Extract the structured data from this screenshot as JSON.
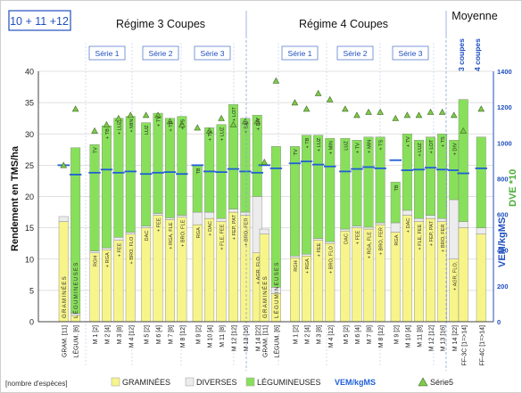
{
  "chart_data": {
    "type": "bar",
    "stacked": true,
    "badge": "10 + 11 +12",
    "group_titles": [
      "Régime 3 Coupes",
      "Régime  4 Coupes",
      "Moyenne"
    ],
    "serie_labels": [
      "Série 1",
      "Série 2",
      "Série 3"
    ],
    "moyenne_labels": [
      "3 coupes",
      "4 coupes"
    ],
    "ylabel": "Rendement    en    TMS/ha",
    "y2label_parts": [
      "VEM/kgMS",
      "DVE *10"
    ],
    "ylim": [
      0,
      40
    ],
    "yticks": [
      0,
      5,
      10,
      15,
      20,
      25,
      30,
      35,
      40
    ],
    "y2lim": [
      0,
      1400
    ],
    "y2ticks": [
      0,
      200,
      400,
      600,
      800,
      1000,
      1200,
      1400
    ],
    "footnote": "[nombre d'espèces]",
    "legend": [
      {
        "key": "gram",
        "label": "GRAMINÉES",
        "color": "#f7f58a"
      },
      {
        "key": "div",
        "label": "DIVERSES",
        "color": "#ececec"
      },
      {
        "key": "leg",
        "label": "LÉGUMINEUSES",
        "color": "#88e05a"
      },
      {
        "key": "vem",
        "label": "VEM/kgMS",
        "color": "#1f5fd6"
      },
      {
        "key": "s5",
        "label": "Série5",
        "color": "#7fc94a"
      }
    ],
    "colors": {
      "gram": "#f7f58a",
      "div": "#ececec",
      "leg": "#88e05a",
      "vem": "#1f5fd6",
      "s5": "#7fc94a",
      "title": "#1f4fbf"
    },
    "bars": [
      {
        "cat": "GRAM. [11]",
        "gram": 16.0,
        "div": 0.8,
        "leg": 0,
        "vem": 25.0,
        "tri": 25.0,
        "note": "",
        "bottom": "GRAMINÉES",
        "inner": ""
      },
      {
        "cat": "LÉGUM. [6]",
        "gram": 1.0,
        "div": 0.3,
        "leg": 26.5,
        "vem": 23.5,
        "tri": 34.0,
        "note": "",
        "bottom": "LÉGUMINEUSES",
        "inner": ""
      },
      {
        "cat": "M 1 [2]",
        "gram": 11.0,
        "div": 0.3,
        "leg": 17.0,
        "vem": 23.8,
        "tri": 30.5,
        "note": "RGH",
        "bottom": "",
        "inner": "TV"
      },
      {
        "cat": "M 2 [4]",
        "gram": 11.5,
        "div": 0.3,
        "leg": 19.5,
        "vem": 24.3,
        "tri": 31.5,
        "note": "+ RGA",
        "bottom": "",
        "inner": "+ TB"
      },
      {
        "cat": "M 3 [8]",
        "gram": 13.0,
        "div": 0.5,
        "leg": 19.0,
        "vem": 23.8,
        "tri": 32.5,
        "note": "+ FEE",
        "bottom": "",
        "inner": "+ LUZ"
      },
      {
        "cat": "M 4 [12]",
        "gram": 14.0,
        "div": 0.3,
        "leg": 18.5,
        "vem": 24.0,
        "tri": 33.0,
        "note": "+ BRO. FLO",
        "bottom": "",
        "inner": "+ MIN"
      },
      {
        "cat": "M 5 [2]",
        "gram": 15.0,
        "div": 0.3,
        "leg": 16.5,
        "vem": 23.6,
        "tri": 33.0,
        "note": "DAC",
        "bottom": "",
        "inner": "LUZ"
      },
      {
        "cat": "M 6 [4]",
        "gram": 17.0,
        "div": 0.3,
        "leg": 16.0,
        "vem": 23.8,
        "tri": 33.0,
        "note": "+ FEE",
        "bottom": "",
        "inner": "+ TV"
      },
      {
        "cat": "M 7 [8]",
        "gram": 16.3,
        "div": 0.3,
        "leg": 15.9,
        "vem": 23.9,
        "tri": 32.0,
        "note": "+ RGA, FLE",
        "bottom": "",
        "inner": "+ TB"
      },
      {
        "cat": "M 8 [12]",
        "gram": 16.7,
        "div": 0.3,
        "leg": 15.8,
        "vem": 23.6,
        "tri": 31.5,
        "note": "+ BRO. FLE",
        "bottom": "",
        "inner": "+ TS"
      },
      {
        "cat": "M 9 [2]",
        "gram": 15.5,
        "div": 2.0,
        "leg": 7.5,
        "vem": 25.0,
        "tri": 31.0,
        "note": "RGA",
        "bottom": "",
        "inner": "TB"
      },
      {
        "cat": "M 10 [4]",
        "gram": 16.5,
        "div": 1.0,
        "leg": 13.5,
        "vem": 24.0,
        "tri": 30.5,
        "note": "+ DAC",
        "bottom": "",
        "inner": "+ TV"
      },
      {
        "cat": "M 11 [8]",
        "gram": 16.0,
        "div": 0.5,
        "leg": 15.0,
        "vem": 23.9,
        "tri": 32.5,
        "note": "+ FLE, FEE",
        "bottom": "",
        "inner": "+ LUZ"
      },
      {
        "cat": "M 12 [12]",
        "gram": 17.5,
        "div": 0.5,
        "leg": 16.7,
        "vem": 24.4,
        "tri": 31.5,
        "note": "+ FEP, PAT",
        "bottom": "",
        "inner": "+ LOT"
      },
      {
        "cat": "M 13 [16]",
        "gram": 17.0,
        "div": 0.5,
        "leg": 15.0,
        "vem": 24.0,
        "tri": 32.0,
        "note": "+ BRO, FER",
        "bottom": "",
        "inner": "+ SAI"
      },
      {
        "cat": "M 14 [22]",
        "gram": 11.0,
        "div": 9.0,
        "leg": 13.0,
        "vem": 23.8,
        "tri": 32.0,
        "note": "+ AGR, FLO,",
        "bottom": "",
        "inner": "+ DIV"
      },
      {
        "cat": "GRAM. [11]",
        "gram": 14.0,
        "div": 0.8,
        "leg": 0,
        "vem": 25.0,
        "tri": 25.5,
        "note": "",
        "bottom": "GRAMINÉES",
        "inner": ""
      },
      {
        "cat": "LÉGUM. [6]",
        "gram": 4.5,
        "div": 1.0,
        "leg": 22.5,
        "vem": 24.5,
        "tri": 38.5,
        "note": "",
        "bottom": "LÉGUMINEUSES",
        "inner": ""
      },
      {
        "cat": "M 1 [2]",
        "gram": 10.2,
        "div": 0.3,
        "leg": 17.5,
        "vem": 25.3,
        "tri": 35.0,
        "note": "RGH",
        "bottom": "",
        "inner": "TV"
      },
      {
        "cat": "M 2 [4]",
        "gram": 10.5,
        "div": 0.3,
        "leg": 19.0,
        "vem": 25.6,
        "tri": 34.0,
        "note": "+ RGA",
        "bottom": "",
        "inner": "+ TB"
      },
      {
        "cat": "M 3 [8]",
        "gram": 13.0,
        "div": 0.3,
        "leg": 16.5,
        "vem": 25.1,
        "tri": 36.5,
        "note": "+ FEE",
        "bottom": "",
        "inner": "+ LUZ"
      },
      {
        "cat": "M 4 [12]",
        "gram": 12.5,
        "div": 0.3,
        "leg": 16.5,
        "vem": 24.8,
        "tri": 35.5,
        "note": "+ BRO, FLO",
        "bottom": "",
        "inner": "+ MIN"
      },
      {
        "cat": "M 5 [2]",
        "gram": 14.5,
        "div": 0.3,
        "leg": 14.5,
        "vem": 24.0,
        "tri": 34.0,
        "note": "DAC",
        "bottom": "",
        "inner": "LUZ"
      },
      {
        "cat": "M 6 [4]",
        "gram": 15.0,
        "div": 0.3,
        "leg": 13.7,
        "vem": 24.4,
        "tri": 33.0,
        "note": "+ FEE",
        "bottom": "",
        "inner": "+ TV"
      },
      {
        "cat": "M 7 [8]",
        "gram": 14.8,
        "div": 0.3,
        "leg": 14.4,
        "vem": 24.7,
        "tri": 33.5,
        "note": "+ RGA, FLE",
        "bottom": "",
        "inner": "+ MIN"
      },
      {
        "cat": "M 8 [12]",
        "gram": 15.5,
        "div": 0.3,
        "leg": 13.7,
        "vem": 24.5,
        "tri": 33.5,
        "note": "+ BRO, FER",
        "bottom": "",
        "inner": "+ TS"
      },
      {
        "cat": "M 9 [2]",
        "gram": 14.3,
        "div": 1.5,
        "leg": 6.5,
        "vem": 25.8,
        "tri": 32.5,
        "note": "RGA",
        "bottom": "",
        "inner": "TB"
      },
      {
        "cat": "M 10 [4]",
        "gram": 17.0,
        "div": 0.8,
        "leg": 12.2,
        "vem": 24.2,
        "tri": 33.0,
        "note": "+ DAC",
        "bottom": "",
        "inner": "+ TV"
      },
      {
        "cat": "M 11 [8]",
        "gram": 16.0,
        "div": 0.5,
        "leg": 12.5,
        "vem": 24.3,
        "tri": 33.0,
        "note": "+ FLE, FEE",
        "bottom": "",
        "inner": "+ LUZ"
      },
      {
        "cat": "M 12 [12]",
        "gram": 16.5,
        "div": 0.5,
        "leg": 12.5,
        "vem": 24.6,
        "tri": 33.5,
        "note": "+ FEP, PAT",
        "bottom": "",
        "inner": "+ LOT"
      },
      {
        "cat": "M 13 [16]",
        "gram": 16.0,
        "div": 0.5,
        "leg": 13.5,
        "vem": 24.3,
        "tri": 33.5,
        "note": "+ BRO, FER",
        "bottom": "",
        "inner": "+ TS"
      },
      {
        "cat": "M 14 [22]",
        "gram": 10.0,
        "div": 9.5,
        "leg": 9.5,
        "vem": 24.2,
        "tri": 33.0,
        "note": "+ AGR, FLO,",
        "bottom": "",
        "inner": "+ DIV"
      },
      {
        "cat": "FF-3C [1=>14]",
        "gram": 15.0,
        "div": 1.0,
        "leg": 19.5,
        "vem": 23.7,
        "tri": 30.5,
        "note": "",
        "bottom": "",
        "inner": ""
      },
      {
        "cat": "FF-4C [1=>14]",
        "gram": 14.0,
        "div": 1.0,
        "leg": 14.5,
        "vem": 24.5,
        "tri": 34.0,
        "note": "",
        "bottom": "",
        "inner": ""
      }
    ]
  }
}
